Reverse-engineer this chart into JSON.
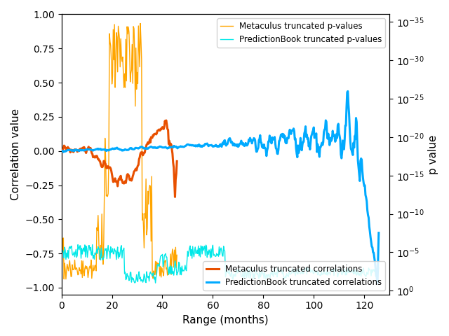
{
  "title": "",
  "xlabel": "Range (months)",
  "ylabel_left": "Correlation value",
  "ylabel_right": "p value",
  "xlim": [
    0,
    130
  ],
  "ylim_left": [
    -1.05,
    1.0
  ],
  "meta_corr_color": "#e85000",
  "pb_corr_color": "#00aaff",
  "meta_pval_color": "#ffa500",
  "pb_pval_color": "#00e8e8",
  "meta_corr_lw": 2.2,
  "pb_corr_lw": 2.2,
  "meta_pval_lw": 1.0,
  "pb_pval_lw": 1.0,
  "legend1_labels": [
    "Metaculus truncated p-values",
    "PredictionBook truncated p-values"
  ],
  "legend2_labels": [
    "Metaculus truncated correlations",
    "PredictionBook truncated correlations"
  ]
}
